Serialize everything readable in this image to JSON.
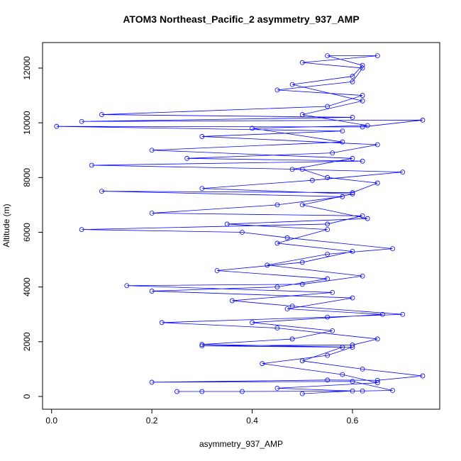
{
  "chart_data": {
    "type": "line",
    "title": "ATOM3 Northeast_Pacific_2 asymmetry_937_AMP",
    "xlabel": "asymmetry_937_AMP",
    "ylabel": "Altitude (m)",
    "color": "#0000ff",
    "xlim": [
      -0.018,
      0.774
    ],
    "ylim": [
      -467,
      12933
    ],
    "xticks": [
      {
        "value": 0,
        "label": "0.0"
      },
      0.2,
      0.4,
      0.6
    ],
    "yticks": [
      0,
      2000,
      4000,
      6000,
      8000,
      10000,
      12000
    ],
    "x": [
      0.25,
      0.3,
      0.38,
      0.62,
      0.68,
      0.6,
      0.2,
      0.55,
      0.65,
      0.74,
      0.62,
      0.5,
      0.58,
      0.3,
      0.6,
      0.65,
      0.45,
      0.22,
      0.55,
      0.7,
      0.48,
      0.36,
      0.56,
      0.15,
      0.5,
      0.62,
      0.43,
      0.55,
      0.68,
      0.47,
      0.38,
      0.06,
      0.55,
      0.62,
      0.2,
      0.45,
      0.58,
      0.1,
      0.6,
      0.65,
      0.55,
      0.5,
      0.08,
      0.62,
      0.27,
      0.56,
      0.65,
      0.3,
      0.58,
      0.01,
      0.62,
      0.74,
      0.06,
      0.6,
      0.1,
      0.55,
      0.62,
      0.45,
      0.6,
      0.62,
      0.5,
      0.65,
      0.55,
      0.62,
      0.6,
      0.48,
      0.62,
      0.5,
      0.63,
      0.4,
      0.58,
      0.2,
      0.6,
      0.48,
      0.7,
      0.52,
      0.3,
      0.6,
      0.5,
      0.63,
      0.35,
      0.55,
      0.45,
      0.6,
      0.5,
      0.33,
      0.55,
      0.45,
      0.2,
      0.6,
      0.47,
      0.66,
      0.4,
      0.56,
      0.48,
      0.3,
      0.6,
      0.55,
      0.42,
      0.58,
      0.65,
      0.45,
      0.6,
      0.5
    ],
    "values": [
      180,
      180,
      180,
      200,
      220,
      550,
      520,
      600,
      590,
      750,
      1000,
      1300,
      1800,
      1850,
      1880,
      2100,
      2500,
      2700,
      2900,
      3000,
      3300,
      3500,
      3800,
      4050,
      4100,
      4400,
      4800,
      5200,
      5400,
      5800,
      6000,
      6100,
      6300,
      6600,
      6700,
      7000,
      7300,
      7500,
      7450,
      7800,
      8000,
      8300,
      8450,
      8600,
      8700,
      8900,
      9200,
      9500,
      9700,
      9870,
      9850,
      10100,
      10050,
      10200,
      10300,
      10600,
      11000,
      11200,
      11500,
      12000,
      12200,
      12450,
      12450,
      12100,
      11700,
      11400,
      10800,
      10300,
      9900,
      9800,
      9300,
      9000,
      8700,
      8300,
      8200,
      7900,
      7600,
      7400,
      7000,
      6500,
      6300,
      6100,
      5600,
      5300,
      4900,
      4600,
      4300,
      4000,
      3850,
      3600,
      3200,
      3000,
      2700,
      2400,
      2100,
      1900,
      1800,
      1500,
      1200,
      800,
      500,
      300,
      200,
      100
    ]
  }
}
